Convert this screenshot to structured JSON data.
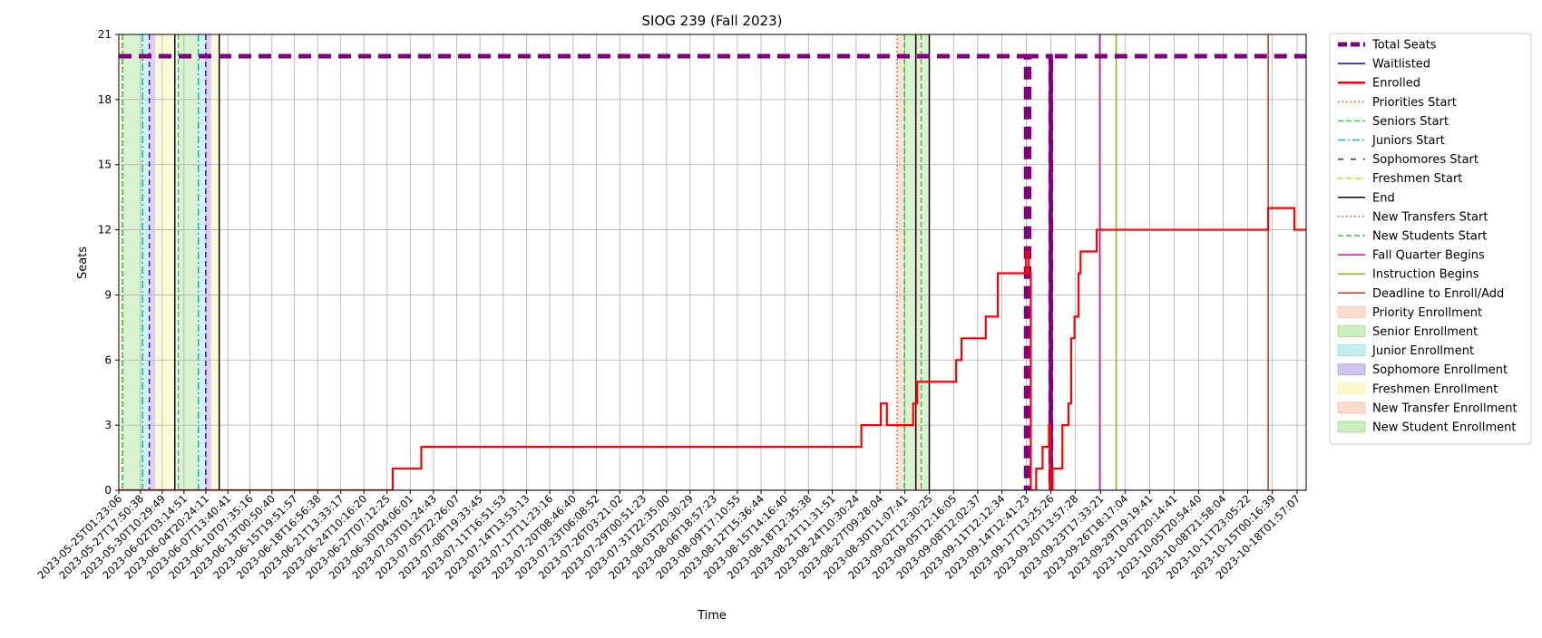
{
  "chart_data": {
    "type": "line",
    "title": "SIOG 239 (Fall 2023)",
    "xlabel": "Time",
    "ylabel": "Seats",
    "ylim": [
      0,
      21
    ],
    "yticks": [
      0,
      3,
      6,
      9,
      12,
      15,
      18,
      21
    ],
    "xlim": [
      "2023-05-25T01:23:06",
      "2023-10-19T05:00:00"
    ],
    "grid": true,
    "legend_position": "outside-right",
    "xticks": [
      "2023-05-25T01:23:06",
      "2023-05-27T17:50:38",
      "2023-05-30T10:29:49",
      "2023-06-02T03:14:51",
      "2023-06-04T20:24:11",
      "2023-06-07T13:40:41",
      "2023-06-10T07:35:16",
      "2023-06-13T00:50:40",
      "2023-06-15T19:51:57",
      "2023-06-18T16:56:38",
      "2023-06-21T13:33:17",
      "2023-06-24T10:16:20",
      "2023-06-27T07:12:25",
      "2023-06-30T04:06:01",
      "2023-07-03T01:24:43",
      "2023-07-05T22:26:07",
      "2023-07-08T19:33:45",
      "2023-07-11T16:51:53",
      "2023-07-14T13:53:13",
      "2023-07-17T11:23:16",
      "2023-07-20T08:46:40",
      "2023-07-23T06:08:52",
      "2023-07-26T03:21:02",
      "2023-07-29T00:51:23",
      "2023-07-31T22:35:00",
      "2023-08-03T20:30:29",
      "2023-08-06T18:57:23",
      "2023-08-09T17:10:55",
      "2023-08-12T15:36:44",
      "2023-08-15T14:16:40",
      "2023-08-18T12:35:38",
      "2023-08-21T11:31:51",
      "2023-08-24T10:30:24",
      "2023-08-27T09:28:04",
      "2023-08-30T11:07:41",
      "2023-09-02T12:30:25",
      "2023-09-05T12:16:05",
      "2023-09-08T12:02:37",
      "2023-09-11T12:12:34",
      "2023-09-14T12:41:23",
      "2023-09-17T13:25:26",
      "2023-09-20T13:57:28",
      "2023-09-23T17:33:21",
      "2023-09-26T18:17:04",
      "2023-09-29T19:19:41",
      "2023-10-02T20:14:41",
      "2023-10-05T20:54:40",
      "2023-10-08T21:58:04",
      "2023-10-11T23:05:22",
      "2023-10-15T00:16:39",
      "2023-10-18T01:57:07"
    ],
    "series": [
      {
        "name": "Total Seats",
        "style": "dashed-thick",
        "color": "#800080",
        "points": [
          [
            "2023-05-25T01:23:06",
            20
          ],
          [
            "2023-09-14T12:00:00",
            20
          ],
          [
            "2023-09-14T12:00:00",
            0
          ],
          [
            "2023-09-14T21:00:00",
            0
          ],
          [
            "2023-09-14T21:00:00",
            20
          ],
          [
            "2023-09-17T13:00:00",
            20
          ],
          [
            "2023-09-17T13:00:00",
            0
          ],
          [
            "2023-09-17T14:00:00",
            0
          ],
          [
            "2023-09-17T14:00:00",
            20
          ],
          [
            "2023-10-19T05:00:00",
            20
          ]
        ]
      },
      {
        "name": "Waitlisted",
        "style": "solid-thin",
        "color": "#0000ff",
        "points": [
          [
            "2023-05-25T01:23:06",
            0
          ],
          [
            "2023-10-19T05:00:00",
            0
          ]
        ]
      },
      {
        "name": "Enrolled",
        "style": "solid",
        "color": "#ff0000",
        "points": [
          [
            "2023-05-25T01:23:06",
            0
          ],
          [
            "2023-06-28T00:00:00",
            0
          ],
          [
            "2023-06-28T00:00:00",
            1
          ],
          [
            "2023-07-01T13:00:00",
            1
          ],
          [
            "2023-07-01T13:00:00",
            2
          ],
          [
            "2023-08-25T02:00:00",
            2
          ],
          [
            "2023-08-25T02:00:00",
            3
          ],
          [
            "2023-08-27T12:00:00",
            3
          ],
          [
            "2023-08-27T12:00:00",
            4
          ],
          [
            "2023-08-28T06:00:00",
            4
          ],
          [
            "2023-08-28T06:00:00",
            3
          ],
          [
            "2023-08-31T12:00:00",
            3
          ],
          [
            "2023-08-31T12:00:00",
            4
          ],
          [
            "2023-09-01T00:00:00",
            4
          ],
          [
            "2023-09-01T00:00:00",
            5
          ],
          [
            "2023-09-05T20:00:00",
            5
          ],
          [
            "2023-09-05T20:00:00",
            6
          ],
          [
            "2023-09-06T12:00:00",
            6
          ],
          [
            "2023-09-06T12:00:00",
            7
          ],
          [
            "2023-09-09T12:00:00",
            7
          ],
          [
            "2023-09-09T12:00:00",
            8
          ],
          [
            "2023-09-11T00:00:00",
            8
          ],
          [
            "2023-09-11T00:00:00",
            10
          ],
          [
            "2023-09-14T12:00:00",
            10
          ],
          [
            "2023-09-14T12:00:00",
            11
          ],
          [
            "2023-09-14T20:00:00",
            11
          ],
          [
            "2023-09-14T20:00:00",
            10
          ],
          [
            "2023-09-15T02:00:00",
            10
          ],
          [
            "2023-09-15T02:00:00",
            0
          ],
          [
            "2023-09-15T18:00:00",
            0
          ],
          [
            "2023-09-15T18:00:00",
            1
          ],
          [
            "2023-09-16T13:00:00",
            1
          ],
          [
            "2023-09-16T13:00:00",
            2
          ],
          [
            "2023-09-17T08:00:00",
            2
          ],
          [
            "2023-09-17T08:00:00",
            3
          ],
          [
            "2023-09-17T12:00:00",
            3
          ],
          [
            "2023-09-17T12:00:00",
            0
          ],
          [
            "2023-09-17T19:00:00",
            0
          ],
          [
            "2023-09-17T19:00:00",
            1
          ],
          [
            "2023-09-19T00:00:00",
            1
          ],
          [
            "2023-09-19T00:00:00",
            3
          ],
          [
            "2023-09-19T18:00:00",
            3
          ],
          [
            "2023-09-19T18:00:00",
            4
          ],
          [
            "2023-09-20T02:00:00",
            4
          ],
          [
            "2023-09-20T02:00:00",
            7
          ],
          [
            "2023-09-20T12:00:00",
            7
          ],
          [
            "2023-09-20T12:00:00",
            8
          ],
          [
            "2023-09-21T00:00:00",
            8
          ],
          [
            "2023-09-21T00:00:00",
            10
          ],
          [
            "2023-09-21T06:00:00",
            10
          ],
          [
            "2023-09-21T06:00:00",
            11
          ],
          [
            "2023-09-23T06:00:00",
            11
          ],
          [
            "2023-09-23T06:00:00",
            12
          ],
          [
            "2023-10-14T12:00:00",
            12
          ],
          [
            "2023-10-14T12:00:00",
            13
          ],
          [
            "2023-10-17T18:00:00",
            13
          ],
          [
            "2023-10-17T18:00:00",
            12
          ],
          [
            "2023-10-19T05:00:00",
            12
          ]
        ]
      }
    ],
    "vlines": [
      {
        "name": "Priorities Start",
        "t": "2023-05-25T11:00:00",
        "color": "#ff4500",
        "dash": "1.5,3"
      },
      {
        "name": "Seniors Start",
        "t": "2023-05-25T13:00:00",
        "color": "#32cd32",
        "dash": "6,3"
      },
      {
        "name": "Juniors Start",
        "t": "2023-05-28T00:00:00",
        "color": "#00bfbf",
        "dash": "8,3,2,3"
      },
      {
        "name": "Sophomores Start",
        "t": "2023-05-28T20:00:00",
        "color": "#5000ff",
        "dash": "6,4"
      },
      {
        "name": "End",
        "t": "2023-06-01T00:00:00",
        "color": "#000000",
        "dash": ""
      },
      {
        "name": "Seniors Start",
        "t": "2023-06-01T10:00:00",
        "color": "#32cd32",
        "dash": "6,3"
      },
      {
        "name": "Juniors Start",
        "t": "2023-06-03T22:00:00",
        "color": "#00bfbf",
        "dash": "8,3,2,3"
      },
      {
        "name": "Sophomores Start",
        "t": "2023-06-04T20:00:00",
        "color": "#5000ff",
        "dash": "6,4"
      },
      {
        "name": "End",
        "t": "2023-06-06T12:00:00",
        "color": "#000000",
        "dash": ""
      },
      {
        "name": "New Transfers Start",
        "t": "2023-08-29T12:00:00",
        "color": "#ff4500",
        "dash": "1.5,3"
      },
      {
        "name": "New Students Start",
        "t": "2023-08-30T10:00:00",
        "color": "#32cd32",
        "dash": "6,3"
      },
      {
        "name": "End",
        "t": "2023-08-31T20:00:00",
        "color": "#000000",
        "dash": ""
      },
      {
        "name": "New Students Start",
        "t": "2023-09-01T12:00:00",
        "color": "#32cd32",
        "dash": "6,3"
      },
      {
        "name": "End",
        "t": "2023-09-02T12:00:00",
        "color": "#000000",
        "dash": ""
      },
      {
        "name": "Fall Quarter Begins",
        "t": "2023-09-23T15:00:00",
        "color": "#e600a8",
        "dash": ""
      },
      {
        "name": "Instruction Begins",
        "t": "2023-09-25T16:00:00",
        "color": "#8ab800",
        "dash": ""
      },
      {
        "name": "Deadline to Enroll/Add",
        "t": "2023-10-14T12:00:00",
        "color": "#cc3311",
        "dash": ""
      }
    ],
    "spans": [
      {
        "name": "Senior Enrollment",
        "start": "2023-05-25T13:00:00",
        "end": "2023-05-28T00:00:00",
        "color": "#7fd65f",
        "opacity": 0.3
      },
      {
        "name": "Junior Enrollment",
        "start": "2023-05-28T00:00:00",
        "end": "2023-05-28T20:00:00",
        "color": "#6fd6d6",
        "opacity": 0.3
      },
      {
        "name": "Sophomore Enrollment",
        "start": "2023-05-28T20:00:00",
        "end": "2023-05-29T14:00:00",
        "color": "#9a7fd6",
        "opacity": 0.35
      },
      {
        "name": "Freshmen Enrollment",
        "start": "2023-05-29T14:00:00",
        "end": "2023-06-01T00:00:00",
        "color": "#f3f38f",
        "opacity": 0.35
      },
      {
        "name": "Senior Enrollment",
        "start": "2023-06-01T10:00:00",
        "end": "2023-06-03T22:00:00",
        "color": "#7fd65f",
        "opacity": 0.3
      },
      {
        "name": "Junior Enrollment",
        "start": "2023-06-03T22:00:00",
        "end": "2023-06-04T20:00:00",
        "color": "#6fd6d6",
        "opacity": 0.3
      },
      {
        "name": "Sophomore Enrollment",
        "start": "2023-06-04T20:00:00",
        "end": "2023-06-05T12:00:00",
        "color": "#9a7fd6",
        "opacity": 0.35
      },
      {
        "name": "Freshmen Enrollment",
        "start": "2023-06-05T12:00:00",
        "end": "2023-06-06T12:00:00",
        "color": "#f3f38f",
        "opacity": 0.35
      },
      {
        "name": "New Transfer Enrollment",
        "start": "2023-08-29T12:00:00",
        "end": "2023-08-30T10:00:00",
        "color": "#f4b08f",
        "opacity": 0.35
      },
      {
        "name": "New Student Enrollment",
        "start": "2023-08-30T10:00:00",
        "end": "2023-08-31T20:00:00",
        "color": "#7fd65f",
        "opacity": 0.3
      },
      {
        "name": "New Transfer Enrollment",
        "start": "2023-08-31T20:00:00",
        "end": "2023-09-01T12:00:00",
        "color": "#f4b08f",
        "opacity": 0.35
      },
      {
        "name": "New Student Enrollment",
        "start": "2023-09-01T12:00:00",
        "end": "2023-09-02T12:00:00",
        "color": "#7fd65f",
        "opacity": 0.3
      }
    ],
    "legend": [
      {
        "label": "Total Seats",
        "kind": "line",
        "color": "#800080",
        "dash": "10,4",
        "width": 5
      },
      {
        "label": "Waitlisted",
        "kind": "line",
        "color": "#0000ff",
        "dash": "",
        "width": 1.5
      },
      {
        "label": "Enrolled",
        "kind": "line",
        "color": "#ff0000",
        "dash": "",
        "width": 2.5
      },
      {
        "label": "Priorities Start",
        "kind": "line",
        "color": "#ff4500",
        "dash": "1.5,3",
        "width": 1.5
      },
      {
        "label": "Seniors Start",
        "kind": "line",
        "color": "#32cd32",
        "dash": "6,3",
        "width": 1.5
      },
      {
        "label": "Juniors Start",
        "kind": "line",
        "color": "#00bfbf",
        "dash": "8,3,2,3",
        "width": 1.5
      },
      {
        "label": "Sophomores Start",
        "kind": "line",
        "color": "#5000ff",
        "dash": "6,8",
        "width": 1.5
      },
      {
        "label": "Freshmen Start",
        "kind": "line",
        "color": "#d6d600",
        "dash": "5,2,1,2",
        "width": 1.5
      },
      {
        "label": "End",
        "kind": "line",
        "color": "#000000",
        "dash": "",
        "width": 1.5
      },
      {
        "label": "New Transfers Start",
        "kind": "line",
        "color": "#ff4500",
        "dash": "1.5,3",
        "width": 1.5
      },
      {
        "label": "New Students Start",
        "kind": "line",
        "color": "#32cd32",
        "dash": "6,3",
        "width": 1.5
      },
      {
        "label": "Fall Quarter Begins",
        "kind": "line",
        "color": "#e600a8",
        "dash": "",
        "width": 1.5
      },
      {
        "label": "Instruction Begins",
        "kind": "line",
        "color": "#8ab800",
        "dash": "",
        "width": 1.5
      },
      {
        "label": "Deadline to Enroll/Add",
        "kind": "line",
        "color": "#cc3311",
        "dash": "",
        "width": 1.5
      },
      {
        "label": "Priority Enrollment",
        "kind": "patch",
        "color": "#f4b08f",
        "opacity": 0.45
      },
      {
        "label": "Senior Enrollment",
        "kind": "patch",
        "color": "#7fd65f",
        "opacity": 0.4
      },
      {
        "label": "Junior Enrollment",
        "kind": "patch",
        "color": "#6fd6d6",
        "opacity": 0.4
      },
      {
        "label": "Sophomore Enrollment",
        "kind": "patch",
        "color": "#9a7fd6",
        "opacity": 0.45
      },
      {
        "label": "Freshmen Enrollment",
        "kind": "patch",
        "color": "#f3f38f",
        "opacity": 0.45
      },
      {
        "label": "New Transfer Enrollment",
        "kind": "patch",
        "color": "#f4b08f",
        "opacity": 0.45
      },
      {
        "label": "New Student Enrollment",
        "kind": "patch",
        "color": "#7fd65f",
        "opacity": 0.4
      }
    ]
  }
}
